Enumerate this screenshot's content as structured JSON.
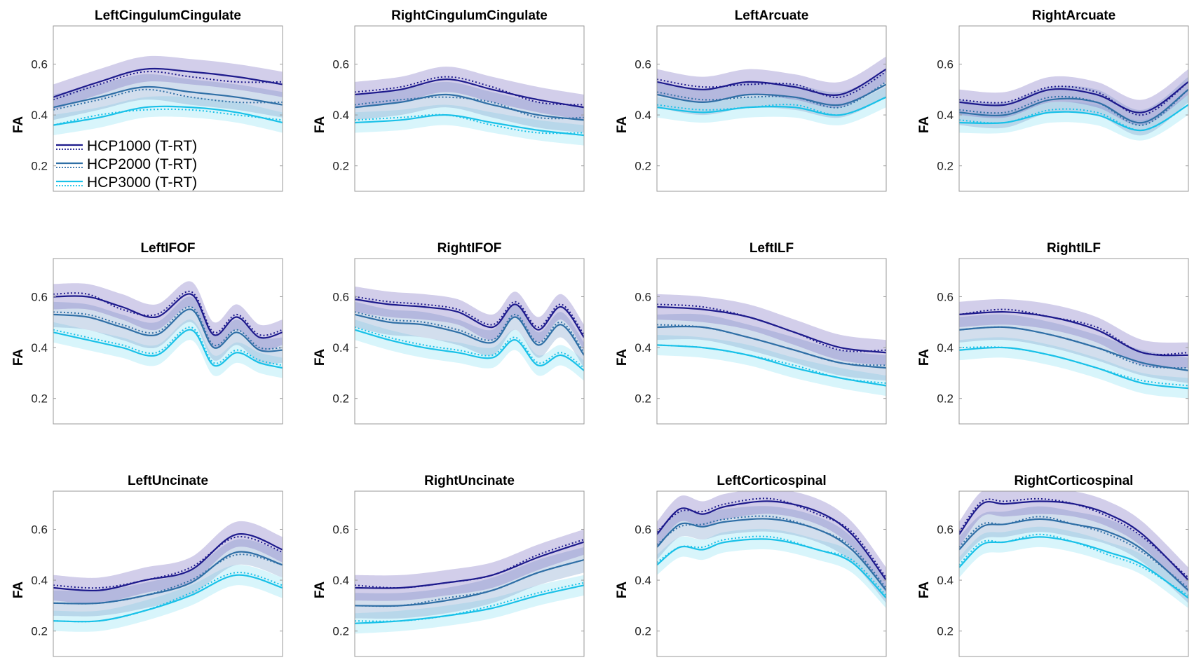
{
  "colors": {
    "HCP1000": "#1d1a8c",
    "HCP2000": "#2f6fa6",
    "HCP3000": "#19c1e8",
    "band1": "#7d74c2",
    "band2": "#7fa0cc",
    "band3": "#8ee2f4"
  },
  "chart_data": [
    {
      "type": "line",
      "title": "LeftCingulumCingulate",
      "ylabel": "FA",
      "ylim": [
        0.1,
        0.75
      ],
      "yticks": [
        "0.2",
        "0.4",
        "0.6"
      ],
      "x": [
        0,
        20,
        40,
        60,
        80,
        100
      ],
      "series": [
        {
          "name": "HCP1000 (T-RT)",
          "test": [
            0.47,
            0.53,
            0.58,
            0.57,
            0.55,
            0.52
          ],
          "retest": [
            0.46,
            0.52,
            0.57,
            0.55,
            0.53,
            0.53
          ],
          "sd": 0.05
        },
        {
          "name": "HCP2000 (T-RT)",
          "test": [
            0.43,
            0.47,
            0.51,
            0.49,
            0.47,
            0.44
          ],
          "retest": [
            0.42,
            0.46,
            0.5,
            0.47,
            0.45,
            0.45
          ],
          "sd": 0.05
        },
        {
          "name": "HCP3000 (T-RT)",
          "test": [
            0.36,
            0.39,
            0.43,
            0.43,
            0.41,
            0.37
          ],
          "retest": [
            0.36,
            0.4,
            0.42,
            0.42,
            0.4,
            0.38
          ],
          "sd": 0.04
        }
      ]
    },
    {
      "type": "line",
      "title": "RightCingulumCingulate",
      "ylabel": "FA",
      "ylim": [
        0.1,
        0.75
      ],
      "yticks": [
        "0.2",
        "0.4",
        "0.6"
      ],
      "x": [
        0,
        20,
        40,
        60,
        80,
        100
      ],
      "series": [
        {
          "name": "HCP1000 (T-RT)",
          "test": [
            0.48,
            0.5,
            0.54,
            0.5,
            0.46,
            0.43
          ],
          "retest": [
            0.49,
            0.51,
            0.55,
            0.51,
            0.45,
            0.44
          ],
          "sd": 0.05
        },
        {
          "name": "HCP2000 (T-RT)",
          "test": [
            0.43,
            0.45,
            0.48,
            0.44,
            0.4,
            0.38
          ],
          "retest": [
            0.44,
            0.46,
            0.47,
            0.45,
            0.39,
            0.39
          ],
          "sd": 0.05
        },
        {
          "name": "HCP3000 (T-RT)",
          "test": [
            0.37,
            0.38,
            0.4,
            0.37,
            0.34,
            0.32
          ],
          "retest": [
            0.38,
            0.39,
            0.4,
            0.36,
            0.33,
            0.33
          ],
          "sd": 0.04
        }
      ]
    },
    {
      "type": "line",
      "title": "LeftArcuate",
      "ylabel": "FA",
      "ylim": [
        0.1,
        0.75
      ],
      "yticks": [
        "0.2",
        "0.4",
        "0.6"
      ],
      "x": [
        0,
        20,
        40,
        60,
        80,
        100
      ],
      "series": [
        {
          "name": "HCP1000 (T-RT)",
          "test": [
            0.53,
            0.5,
            0.53,
            0.51,
            0.48,
            0.58
          ],
          "retest": [
            0.54,
            0.51,
            0.52,
            0.52,
            0.47,
            0.57
          ],
          "sd": 0.05
        },
        {
          "name": "HCP2000 (T-RT)",
          "test": [
            0.48,
            0.45,
            0.48,
            0.47,
            0.44,
            0.52
          ],
          "retest": [
            0.49,
            0.46,
            0.47,
            0.47,
            0.43,
            0.53
          ],
          "sd": 0.05
        },
        {
          "name": "HCP3000 (T-RT)",
          "test": [
            0.43,
            0.41,
            0.43,
            0.43,
            0.4,
            0.47
          ],
          "retest": [
            0.44,
            0.42,
            0.43,
            0.44,
            0.4,
            0.47
          ],
          "sd": 0.04
        }
      ]
    },
    {
      "type": "line",
      "title": "RightArcuate",
      "ylabel": "FA",
      "ylim": [
        0.1,
        0.75
      ],
      "yticks": [
        "0.2",
        "0.4",
        "0.6"
      ],
      "x": [
        0,
        20,
        40,
        60,
        80,
        100
      ],
      "series": [
        {
          "name": "HCP1000 (T-RT)",
          "test": [
            0.45,
            0.44,
            0.5,
            0.48,
            0.41,
            0.53
          ],
          "retest": [
            0.46,
            0.45,
            0.51,
            0.49,
            0.4,
            0.53
          ],
          "sd": 0.05
        },
        {
          "name": "HCP2000 (T-RT)",
          "test": [
            0.41,
            0.4,
            0.46,
            0.45,
            0.37,
            0.5
          ],
          "retest": [
            0.42,
            0.41,
            0.47,
            0.45,
            0.36,
            0.5
          ],
          "sd": 0.05
        },
        {
          "name": "HCP3000 (T-RT)",
          "test": [
            0.37,
            0.37,
            0.41,
            0.4,
            0.34,
            0.44
          ],
          "retest": [
            0.38,
            0.37,
            0.42,
            0.41,
            0.34,
            0.44
          ],
          "sd": 0.04
        }
      ]
    },
    {
      "type": "line",
      "title": "LeftIFOF",
      "ylabel": "FA",
      "ylim": [
        0.1,
        0.75
      ],
      "yticks": [
        "0.2",
        "0.4",
        "0.6"
      ],
      "x": [
        0,
        15,
        30,
        45,
        60,
        70,
        80,
        90,
        100
      ],
      "series": [
        {
          "name": "HCP1000 (T-RT)",
          "test": [
            0.6,
            0.6,
            0.56,
            0.52,
            0.61,
            0.45,
            0.52,
            0.44,
            0.46
          ],
          "retest": [
            0.61,
            0.61,
            0.55,
            0.53,
            0.62,
            0.46,
            0.53,
            0.45,
            0.47
          ],
          "sd": 0.05
        },
        {
          "name": "HCP2000 (T-RT)",
          "test": [
            0.53,
            0.52,
            0.48,
            0.45,
            0.55,
            0.4,
            0.46,
            0.39,
            0.39
          ],
          "retest": [
            0.54,
            0.53,
            0.49,
            0.46,
            0.56,
            0.41,
            0.47,
            0.4,
            0.4
          ],
          "sd": 0.05
        },
        {
          "name": "HCP3000 (T-RT)",
          "test": [
            0.46,
            0.43,
            0.4,
            0.37,
            0.47,
            0.33,
            0.38,
            0.34,
            0.32
          ],
          "retest": [
            0.47,
            0.44,
            0.41,
            0.38,
            0.48,
            0.34,
            0.39,
            0.35,
            0.33
          ],
          "sd": 0.04
        }
      ]
    },
    {
      "type": "line",
      "title": "RightIFOF",
      "ylabel": "FA",
      "ylim": [
        0.1,
        0.75
      ],
      "yticks": [
        "0.2",
        "0.4",
        "0.6"
      ],
      "x": [
        0,
        15,
        30,
        45,
        60,
        70,
        80,
        90,
        100
      ],
      "series": [
        {
          "name": "HCP1000 (T-RT)",
          "test": [
            0.59,
            0.57,
            0.56,
            0.54,
            0.48,
            0.57,
            0.47,
            0.56,
            0.44
          ],
          "retest": [
            0.6,
            0.58,
            0.57,
            0.55,
            0.49,
            0.58,
            0.48,
            0.57,
            0.45
          ],
          "sd": 0.05
        },
        {
          "name": "HCP2000 (T-RT)",
          "test": [
            0.53,
            0.5,
            0.49,
            0.46,
            0.42,
            0.52,
            0.41,
            0.49,
            0.37
          ],
          "retest": [
            0.54,
            0.51,
            0.5,
            0.47,
            0.43,
            0.53,
            0.42,
            0.5,
            0.38
          ],
          "sd": 0.05
        },
        {
          "name": "HCP3000 (T-RT)",
          "test": [
            0.47,
            0.43,
            0.4,
            0.38,
            0.36,
            0.43,
            0.33,
            0.37,
            0.31
          ],
          "retest": [
            0.48,
            0.44,
            0.41,
            0.39,
            0.37,
            0.44,
            0.34,
            0.38,
            0.32
          ],
          "sd": 0.04
        }
      ]
    },
    {
      "type": "line",
      "title": "LeftILF",
      "ylabel": "FA",
      "ylim": [
        0.1,
        0.75
      ],
      "yticks": [
        "0.2",
        "0.4",
        "0.6"
      ],
      "x": [
        0,
        20,
        40,
        60,
        80,
        100
      ],
      "series": [
        {
          "name": "HCP1000 (T-RT)",
          "test": [
            0.56,
            0.55,
            0.52,
            0.46,
            0.4,
            0.38
          ],
          "retest": [
            0.57,
            0.56,
            0.52,
            0.46,
            0.39,
            0.39
          ],
          "sd": 0.05
        },
        {
          "name": "HCP2000 (T-RT)",
          "test": [
            0.48,
            0.48,
            0.44,
            0.39,
            0.34,
            0.32
          ],
          "retest": [
            0.49,
            0.48,
            0.44,
            0.39,
            0.34,
            0.33
          ],
          "sd": 0.05
        },
        {
          "name": "HCP3000 (T-RT)",
          "test": [
            0.41,
            0.4,
            0.37,
            0.32,
            0.28,
            0.25
          ],
          "retest": [
            0.41,
            0.4,
            0.37,
            0.33,
            0.28,
            0.26
          ],
          "sd": 0.04
        }
      ]
    },
    {
      "type": "line",
      "title": "RightILF",
      "ylabel": "FA",
      "ylim": [
        0.1,
        0.75
      ],
      "yticks": [
        "0.2",
        "0.4",
        "0.6"
      ],
      "x": [
        0,
        20,
        40,
        60,
        80,
        100
      ],
      "series": [
        {
          "name": "HCP1000 (T-RT)",
          "test": [
            0.53,
            0.54,
            0.52,
            0.47,
            0.38,
            0.37
          ],
          "retest": [
            0.53,
            0.55,
            0.52,
            0.48,
            0.38,
            0.38
          ],
          "sd": 0.05
        },
        {
          "name": "HCP2000 (T-RT)",
          "test": [
            0.47,
            0.48,
            0.45,
            0.4,
            0.34,
            0.31
          ],
          "retest": [
            0.47,
            0.48,
            0.45,
            0.4,
            0.33,
            0.32
          ],
          "sd": 0.05
        },
        {
          "name": "HCP3000 (T-RT)",
          "test": [
            0.39,
            0.4,
            0.37,
            0.32,
            0.26,
            0.24
          ],
          "retest": [
            0.4,
            0.4,
            0.37,
            0.32,
            0.27,
            0.25
          ],
          "sd": 0.04
        }
      ]
    },
    {
      "type": "line",
      "title": "LeftUncinate",
      "ylabel": "FA",
      "ylim": [
        0.1,
        0.75
      ],
      "yticks": [
        "0.2",
        "0.4",
        "0.6"
      ],
      "x": [
        0,
        20,
        40,
        60,
        80,
        100
      ],
      "series": [
        {
          "name": "HCP1000 (T-RT)",
          "test": [
            0.37,
            0.36,
            0.4,
            0.44,
            0.58,
            0.52
          ],
          "retest": [
            0.38,
            0.37,
            0.4,
            0.45,
            0.57,
            0.51
          ],
          "sd": 0.05
        },
        {
          "name": "HCP2000 (T-RT)",
          "test": [
            0.31,
            0.31,
            0.34,
            0.39,
            0.51,
            0.46
          ],
          "retest": [
            0.31,
            0.31,
            0.34,
            0.4,
            0.5,
            0.46
          ],
          "sd": 0.05
        },
        {
          "name": "HCP3000 (T-RT)",
          "test": [
            0.24,
            0.24,
            0.28,
            0.34,
            0.42,
            0.37
          ],
          "retest": [
            0.24,
            0.24,
            0.28,
            0.35,
            0.43,
            0.38
          ],
          "sd": 0.04
        }
      ]
    },
    {
      "type": "line",
      "title": "RightUncinate",
      "ylabel": "FA",
      "ylim": [
        0.1,
        0.75
      ],
      "yticks": [
        "0.2",
        "0.4",
        "0.6"
      ],
      "x": [
        0,
        20,
        40,
        60,
        80,
        100
      ],
      "series": [
        {
          "name": "HCP1000 (T-RT)",
          "test": [
            0.37,
            0.37,
            0.39,
            0.42,
            0.49,
            0.55
          ],
          "retest": [
            0.38,
            0.37,
            0.39,
            0.42,
            0.5,
            0.56
          ],
          "sd": 0.05
        },
        {
          "name": "HCP2000 (T-RT)",
          "test": [
            0.3,
            0.3,
            0.32,
            0.36,
            0.43,
            0.48
          ],
          "retest": [
            0.3,
            0.3,
            0.33,
            0.36,
            0.43,
            0.48
          ],
          "sd": 0.05
        },
        {
          "name": "HCP3000 (T-RT)",
          "test": [
            0.23,
            0.24,
            0.26,
            0.29,
            0.34,
            0.38
          ],
          "retest": [
            0.24,
            0.24,
            0.26,
            0.3,
            0.35,
            0.39
          ],
          "sd": 0.04
        }
      ]
    },
    {
      "type": "line",
      "title": "LeftCorticospinal",
      "ylabel": "FA",
      "ylim": [
        0.1,
        0.75
      ],
      "yticks": [
        "0.2",
        "0.4",
        "0.6"
      ],
      "x": [
        0,
        10,
        20,
        30,
        50,
        70,
        85,
        100
      ],
      "series": [
        {
          "name": "HCP1000 (T-RT)",
          "test": [
            0.58,
            0.68,
            0.66,
            0.69,
            0.71,
            0.67,
            0.58,
            0.4
          ],
          "retest": [
            0.59,
            0.67,
            0.67,
            0.7,
            0.72,
            0.66,
            0.59,
            0.41
          ],
          "sd": 0.05
        },
        {
          "name": "HCP2000 (T-RT)",
          "test": [
            0.53,
            0.62,
            0.61,
            0.63,
            0.64,
            0.6,
            0.52,
            0.36
          ],
          "retest": [
            0.54,
            0.61,
            0.62,
            0.64,
            0.65,
            0.6,
            0.53,
            0.37
          ],
          "sd": 0.05
        },
        {
          "name": "HCP3000 (T-RT)",
          "test": [
            0.46,
            0.53,
            0.52,
            0.55,
            0.56,
            0.52,
            0.47,
            0.33
          ],
          "retest": [
            0.47,
            0.53,
            0.53,
            0.56,
            0.57,
            0.52,
            0.48,
            0.34
          ],
          "sd": 0.04
        }
      ]
    },
    {
      "type": "line",
      "title": "RightCorticospinal",
      "ylabel": "FA",
      "ylim": [
        0.1,
        0.75
      ],
      "yticks": [
        "0.2",
        "0.4",
        "0.6"
      ],
      "x": [
        0,
        10,
        20,
        35,
        50,
        65,
        80,
        100
      ],
      "series": [
        {
          "name": "HCP1000 (T-RT)",
          "test": [
            0.58,
            0.7,
            0.7,
            0.71,
            0.7,
            0.66,
            0.58,
            0.4
          ],
          "retest": [
            0.59,
            0.71,
            0.71,
            0.72,
            0.7,
            0.65,
            0.57,
            0.41
          ],
          "sd": 0.05
        },
        {
          "name": "HCP2000 (T-RT)",
          "test": [
            0.52,
            0.61,
            0.62,
            0.64,
            0.62,
            0.59,
            0.52,
            0.36
          ],
          "retest": [
            0.53,
            0.62,
            0.62,
            0.65,
            0.62,
            0.58,
            0.51,
            0.37
          ],
          "sd": 0.05
        },
        {
          "name": "HCP3000 (T-RT)",
          "test": [
            0.45,
            0.54,
            0.55,
            0.57,
            0.55,
            0.51,
            0.46,
            0.33
          ],
          "retest": [
            0.46,
            0.55,
            0.55,
            0.58,
            0.55,
            0.5,
            0.45,
            0.34
          ],
          "sd": 0.04
        }
      ]
    }
  ],
  "legend": {
    "location": "bottom-left of first panel",
    "items": [
      "HCP1000 (T-RT)",
      "HCP2000 (T-RT)",
      "HCP3000 (T-RT)"
    ]
  }
}
